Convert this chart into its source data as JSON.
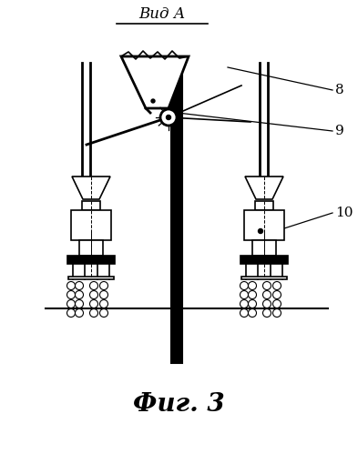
{
  "title_text": "Вид А",
  "caption_text": "Фиг. 3",
  "label_8": "8",
  "label_9": "9",
  "label_10": "10",
  "bg_color": "#ffffff",
  "line_color": "#000000",
  "figsize": [
    3.93,
    4.99
  ],
  "dpi": 100
}
